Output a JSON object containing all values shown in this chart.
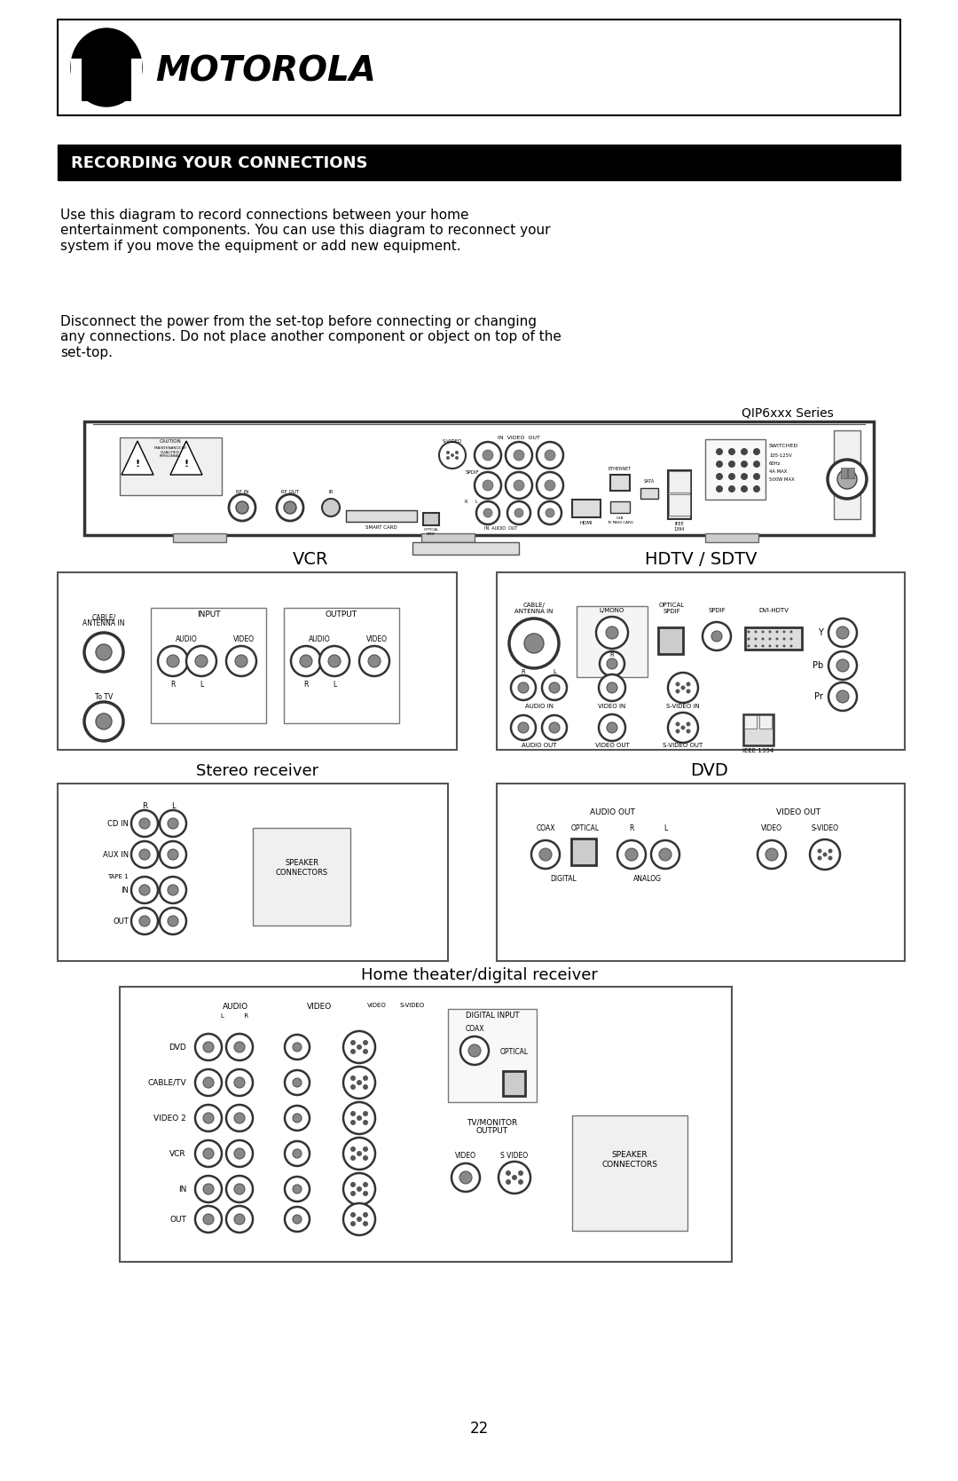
{
  "bg_color": "#ffffff",
  "page_width": 10.8,
  "page_height": 16.69,
  "motorola_text": "MOTOROLA",
  "section_text": "RECORDING YOUR CONNECTIONS",
  "para1": "Use this diagram to record connections between your home\nentertainment components. You can use this diagram to reconnect your\nsystem if you move the equipment or add new equipment.",
  "para2": "Disconnect the power from the set-top before connecting or changing\nany connections. Do not place another component or object on top of the\nset-top.",
  "qip_label": "QIP6xxx Series",
  "vcr_label": "VCR",
  "hdtv_label": "HDTV / SDTV",
  "stereo_label": "Stereo receiver",
  "dvd_label": "DVD",
  "home_label": "Home theater/digital receiver",
  "page_number": "22"
}
